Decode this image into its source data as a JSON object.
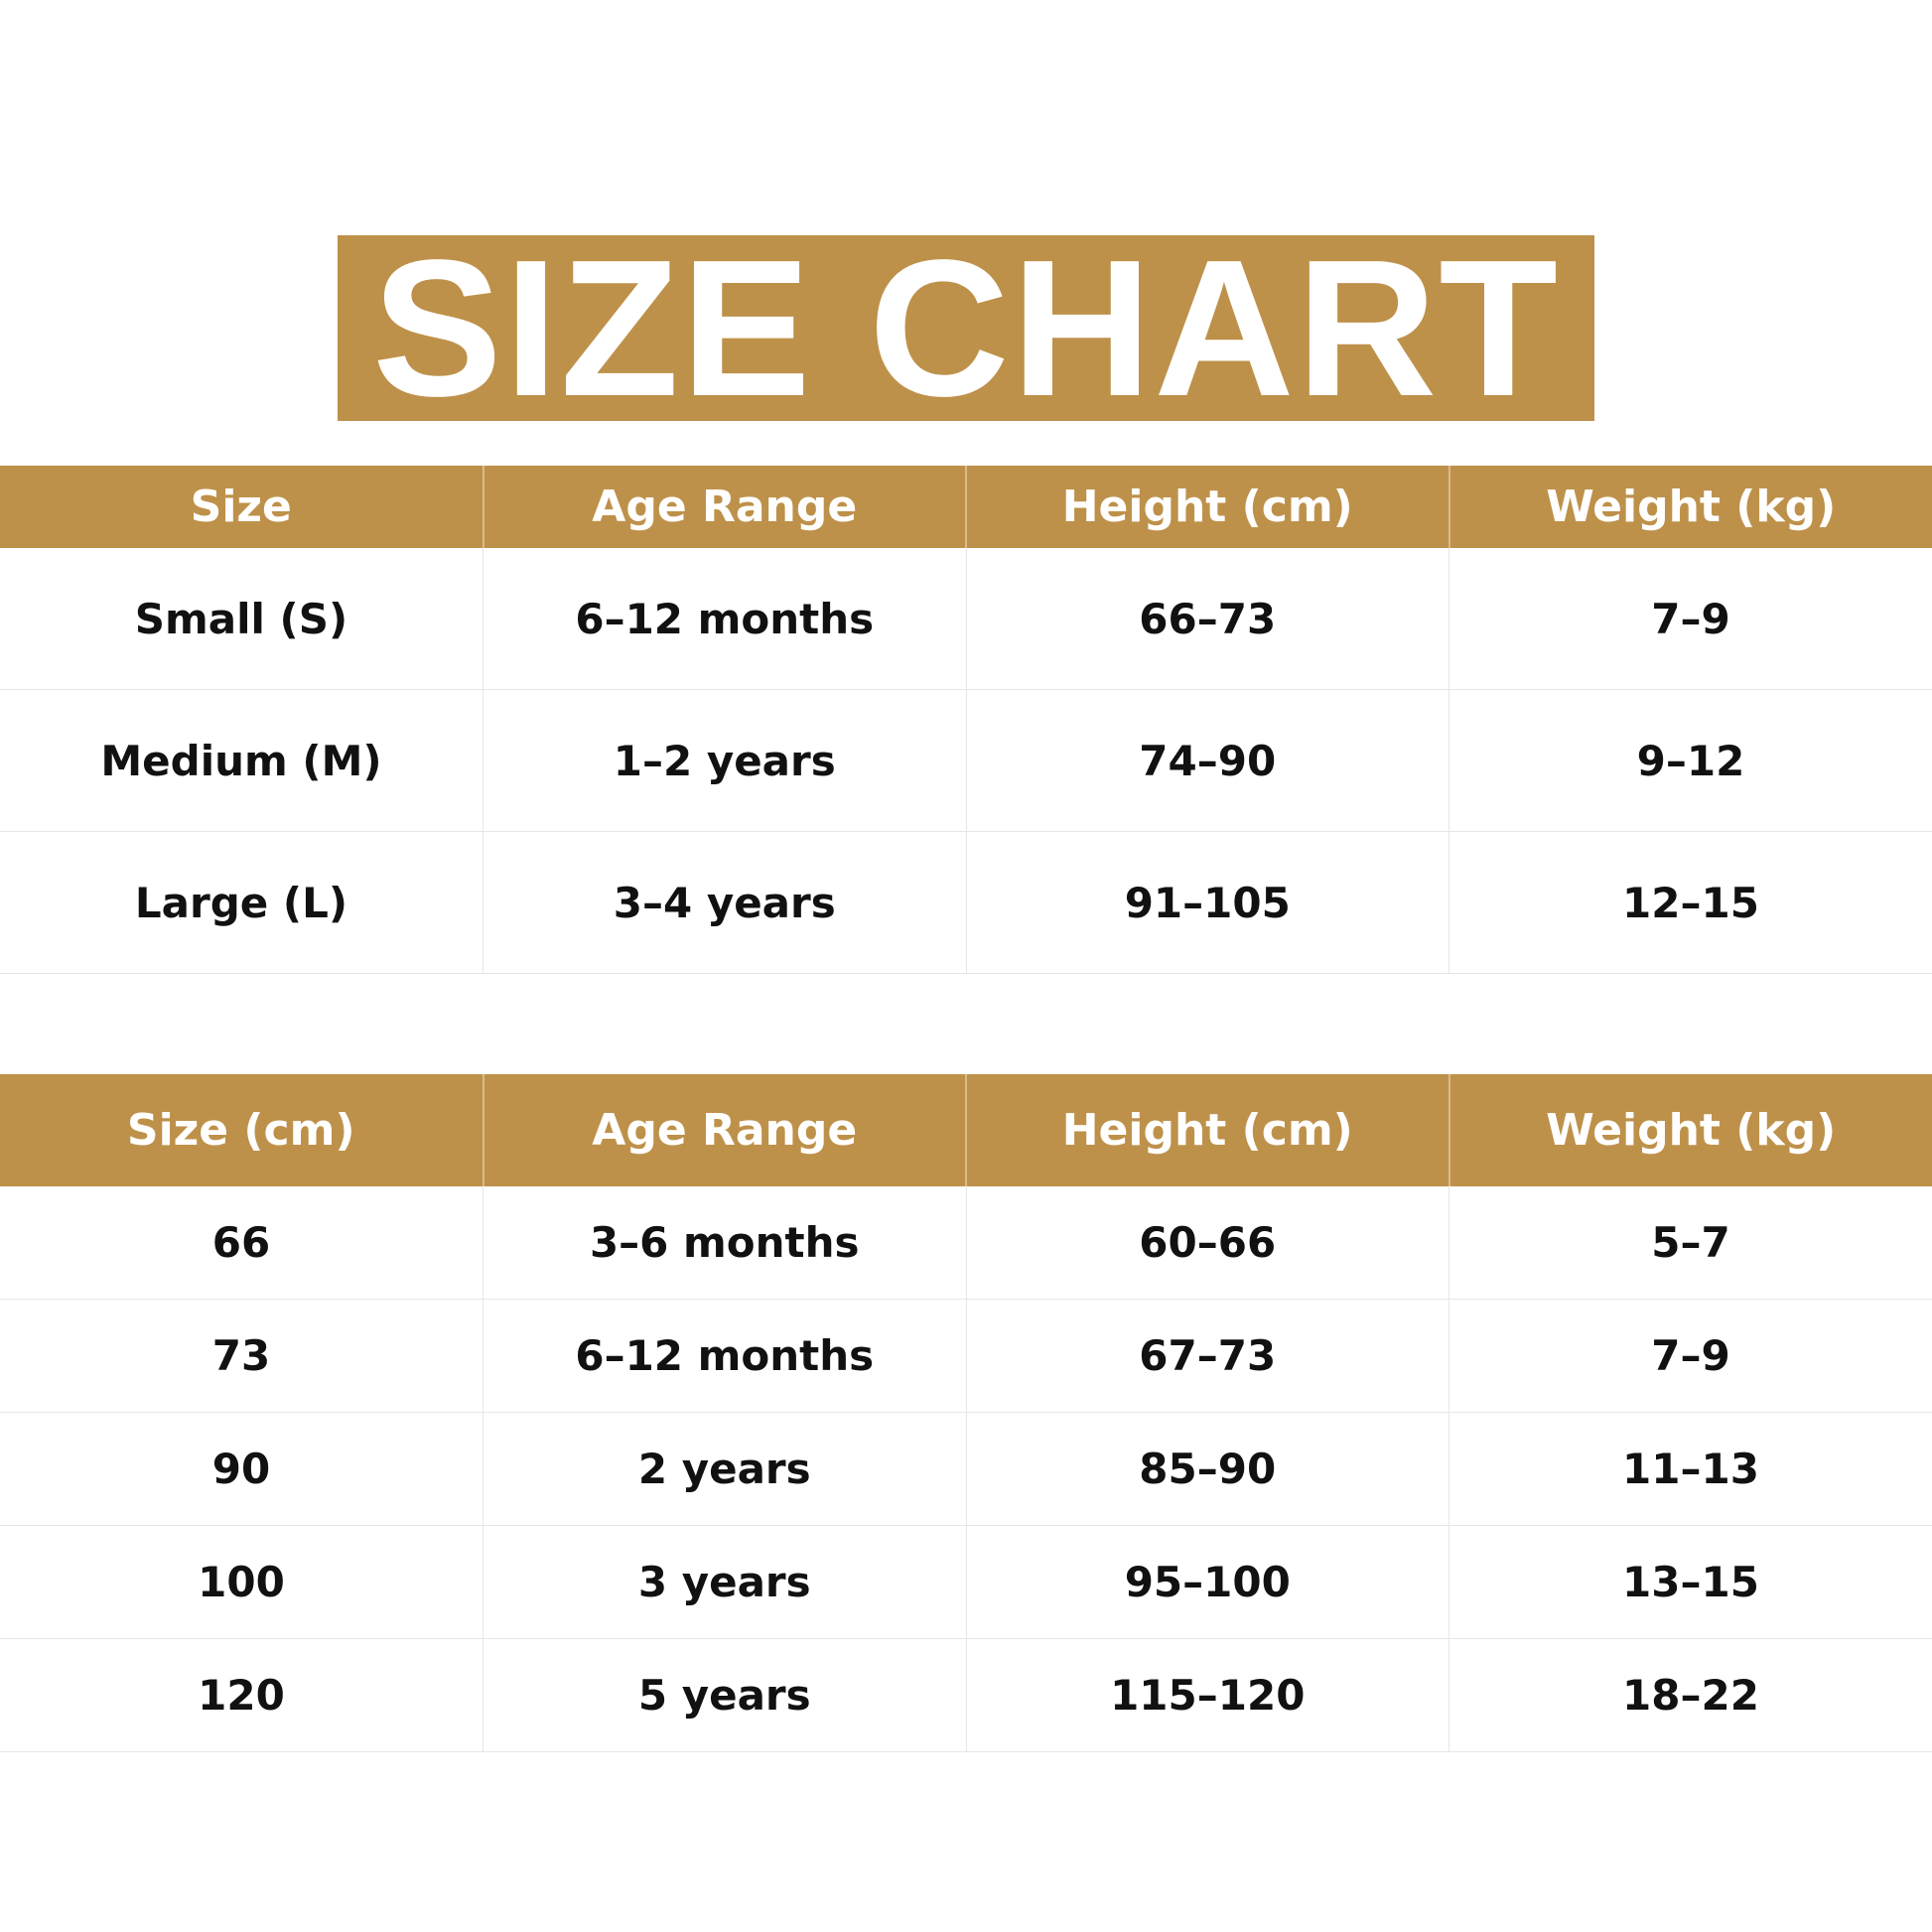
{
  "title": "SIZE CHART",
  "accent_color": "#BE914A",
  "table1": {
    "headers": [
      "Size",
      "Age Range",
      "Height (cm)",
      "Weight (kg)"
    ],
    "rows": [
      [
        "Small (S)",
        "6–12 months",
        "66–73",
        "7–9"
      ],
      [
        "Medium (M)",
        "1–2 years",
        "74–90",
        "9–12"
      ],
      [
        "Large (L)",
        "3–4 years",
        "91–105",
        "12–15"
      ]
    ]
  },
  "table2": {
    "headers": [
      "Size (cm)",
      "Age Range",
      "Height (cm)",
      "Weight (kg)"
    ],
    "rows": [
      [
        "66",
        "3–6 months",
        "60–66",
        "5–7"
      ],
      [
        "73",
        "6–12 months",
        "67–73",
        "7–9"
      ],
      [
        "90",
        "2 years",
        "85–90",
        "11–13"
      ],
      [
        "100",
        "3 years",
        "95–100",
        "13–15"
      ],
      [
        "120",
        "5 years",
        "115–120",
        "18–22"
      ]
    ]
  }
}
